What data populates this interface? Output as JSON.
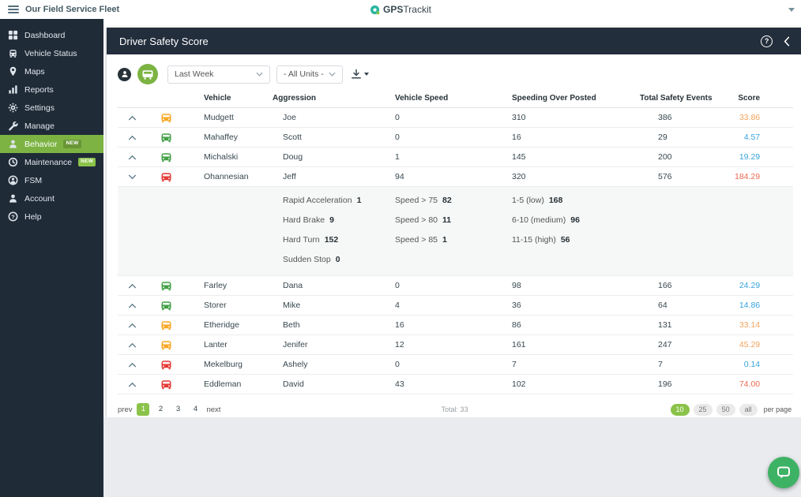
{
  "topbar": {
    "fleet_title": "Our Field Service Fleet",
    "brand_bold": "GPS",
    "brand_rest": "Trackit"
  },
  "sidebar": {
    "items": [
      {
        "label": "Dashboard"
      },
      {
        "label": "Vehicle Status"
      },
      {
        "label": "Maps"
      },
      {
        "label": "Reports"
      },
      {
        "label": "Settings"
      },
      {
        "label": "Manage"
      },
      {
        "label": "Behavior",
        "badge": "NEW",
        "active": true
      },
      {
        "label": "Maintenance",
        "badge": "NEW"
      },
      {
        "label": "FSM"
      },
      {
        "label": "Account"
      },
      {
        "label": "Help"
      }
    ]
  },
  "panel": {
    "title": "Driver Safety Score",
    "filters": {
      "period": "Last Week",
      "units": "- All Units -"
    },
    "table": {
      "headers": {
        "vehicle": "Vehicle",
        "aggression": "Aggression",
        "vehicle_speed": "Vehicle Speed",
        "speeding": "Speeding Over Posted",
        "total": "Total Safety Events",
        "score": "Score"
      },
      "rows": [
        {
          "car": "amber",
          "last": "Mudgett",
          "first": "Joe",
          "vehicle_speed": "0",
          "speeding": "310",
          "total_events": "386",
          "score": "33.86",
          "score_level": "orange"
        },
        {
          "car": "green",
          "last": "Mahaffey",
          "first": "Scott",
          "vehicle_speed": "0",
          "speeding": "16",
          "total_events": "29",
          "score": "4.57",
          "score_level": "blue"
        },
        {
          "car": "green",
          "last": "Michalski",
          "first": "Doug",
          "vehicle_speed": "1",
          "speeding": "145",
          "total_events": "200",
          "score": "19.29",
          "score_level": "blue"
        },
        {
          "car": "red",
          "last": "Ohannesian",
          "first": "Jeff",
          "vehicle_speed": "94",
          "speeding": "320",
          "total_events": "576",
          "score": "184.29",
          "score_level": "red",
          "expanded": true,
          "details": {
            "aggression": [
              {
                "label": "Rapid Acceleration",
                "value": "1"
              },
              {
                "label": "Hard Brake",
                "value": "9"
              },
              {
                "label": "Hard Turn",
                "value": "152"
              },
              {
                "label": "Sudden Stop",
                "value": "0"
              }
            ],
            "vehicle_speed": [
              {
                "label": "Speed > 75",
                "value": "82"
              },
              {
                "label": "Speed > 80",
                "value": "11"
              },
              {
                "label": "Speed > 85",
                "value": "1"
              }
            ],
            "speeding": [
              {
                "label": "1-5 (low)",
                "value": "168"
              },
              {
                "label": "6-10 (medium)",
                "value": "96"
              },
              {
                "label": "11-15 (high)",
                "value": "56"
              }
            ]
          }
        },
        {
          "car": "green",
          "last": "Farley",
          "first": "Dana",
          "vehicle_speed": "0",
          "speeding": "98",
          "total_events": "166",
          "score": "24.29",
          "score_level": "blue"
        },
        {
          "car": "green",
          "last": "Storer",
          "first": "Mike",
          "vehicle_speed": "4",
          "speeding": "36",
          "total_events": "64",
          "score": "14.86",
          "score_level": "blue"
        },
        {
          "car": "amber",
          "last": "Etheridge",
          "first": "Beth",
          "vehicle_speed": "16",
          "speeding": "86",
          "total_events": "131",
          "score": "33.14",
          "score_level": "orange"
        },
        {
          "car": "amber",
          "last": "Lanter",
          "first": "Jenifer",
          "vehicle_speed": "12",
          "speeding": "161",
          "total_events": "247",
          "score": "45.29",
          "score_level": "orange"
        },
        {
          "car": "red",
          "last": "Mekelburg",
          "first": "Ashely",
          "vehicle_speed": "0",
          "speeding": "7",
          "total_events": "7",
          "score": "0.14",
          "score_level": "blue"
        },
        {
          "car": "red",
          "last": "Eddleman",
          "first": "David",
          "vehicle_speed": "43",
          "speeding": "102",
          "total_events": "196",
          "score": "74.00",
          "score_level": "red"
        }
      ]
    },
    "pagination": {
      "prev": "prev",
      "next": "next",
      "pages": [
        "1",
        "2",
        "3",
        "4"
      ],
      "active_page": "1",
      "total": "Total: 33",
      "per_page_options": [
        "10",
        "25",
        "50",
        "all"
      ],
      "active_per_page": "10",
      "per_page_label": "per page"
    }
  },
  "colors": {
    "accent_green": "#7cb342",
    "sidebar_dark": "#202b38",
    "header_dark": "#232e3c",
    "score_blue": "#36a3dc",
    "score_orange": "#f2a35c",
    "score_red": "#ec6a52",
    "car_green": "#43a047",
    "car_amber": "#f9a825",
    "car_red": "#e53935",
    "chat_green": "#3eb264"
  }
}
